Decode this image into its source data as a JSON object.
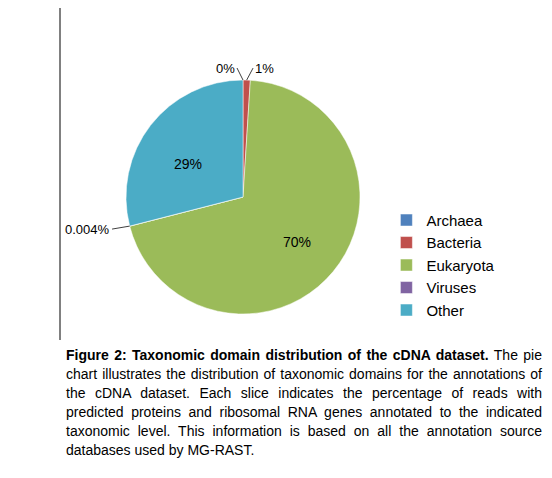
{
  "chart_data": {
    "type": "pie",
    "categories": [
      "Archaea",
      "Bacteria",
      "Eukaryota",
      "Viruses",
      "Other"
    ],
    "values": [
      0,
      1,
      70,
      0.004,
      29
    ],
    "value_labels": [
      "0%",
      "1%",
      "70%",
      "0.004%",
      "29%"
    ],
    "colors": [
      "#4f81bd",
      "#c0504d",
      "#9bbb59",
      "#8064a2",
      "#4bacc6"
    ],
    "legend": "right",
    "data_labels": true
  },
  "caption": {
    "title": "Figure 2: Taxonomic domain distribution of the cDNA dataset.",
    "text": "The pie chart illustrates the distribution of taxonomic domains for the annotations of the cDNA dataset. Each slice indicates the percentage of reads with predicted proteins and ribosomal RNA genes annotated to the indicated taxonomic level. This information is based on all the annotation source databases used by MG-RAST."
  }
}
